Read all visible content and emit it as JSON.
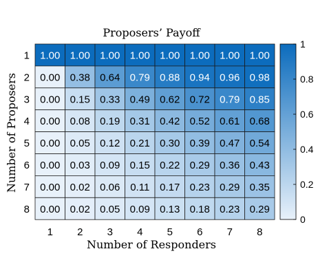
{
  "chart_data": {
    "type": "heatmap",
    "title": "Proposers’ Payoff",
    "xlabel": "Number of Responders",
    "ylabel": "Number of Proposers",
    "x_categories": [
      "1",
      "2",
      "3",
      "4",
      "5",
      "6",
      "7",
      "8"
    ],
    "y_categories": [
      "1",
      "2",
      "3",
      "4",
      "5",
      "6",
      "7",
      "8"
    ],
    "values": [
      [
        1.0,
        1.0,
        1.0,
        1.0,
        1.0,
        1.0,
        1.0,
        1.0
      ],
      [
        0.0,
        0.38,
        0.64,
        0.79,
        0.88,
        0.94,
        0.96,
        0.98
      ],
      [
        0.0,
        0.15,
        0.33,
        0.49,
        0.62,
        0.72,
        0.79,
        0.85
      ],
      [
        0.0,
        0.08,
        0.19,
        0.31,
        0.42,
        0.52,
        0.61,
        0.68
      ],
      [
        0.0,
        0.05,
        0.12,
        0.21,
        0.3,
        0.39,
        0.47,
        0.54
      ],
      [
        0.0,
        0.03,
        0.09,
        0.15,
        0.22,
        0.29,
        0.36,
        0.43
      ],
      [
        0.0,
        0.02,
        0.06,
        0.11,
        0.17,
        0.23,
        0.29,
        0.35
      ],
      [
        0.0,
        0.02,
        0.05,
        0.09,
        0.13,
        0.18,
        0.23,
        0.29
      ]
    ],
    "value_labels": [
      [
        "1.00",
        "1.00",
        "1.00",
        "1.00",
        "1.00",
        "1.00",
        "1.00",
        "1.00"
      ],
      [
        "0.00",
        "0.38",
        "0.64",
        "0.79",
        "0.88",
        "0.94",
        "0.96",
        "0.98"
      ],
      [
        "0.00",
        "0.15",
        "0.33",
        "0.49",
        "0.62",
        "0.72",
        "0.79",
        "0.85"
      ],
      [
        "0.00",
        "0.08",
        "0.19",
        "0.31",
        "0.42",
        "0.52",
        "0.61",
        "0.68"
      ],
      [
        "0.00",
        "0.05",
        "0.12",
        "0.21",
        "0.30",
        "0.39",
        "0.47",
        "0.54"
      ],
      [
        "0.00",
        "0.03",
        "0.09",
        "0.15",
        "0.22",
        "0.29",
        "0.36",
        "0.43"
      ],
      [
        "0.00",
        "0.02",
        "0.06",
        "0.11",
        "0.17",
        "0.23",
        "0.29",
        "0.35"
      ],
      [
        "0.00",
        "0.02",
        "0.05",
        "0.09",
        "0.13",
        "0.18",
        "0.23",
        "0.29"
      ]
    ],
    "colorbar": {
      "range": [
        0,
        1
      ],
      "ticks": [
        0,
        0.2,
        0.4,
        0.6,
        0.8,
        1
      ],
      "tick_labels": [
        "0",
        "0.2",
        "0.4",
        "0.6",
        "0.8",
        "1"
      ],
      "color_low": "#e8f1fa",
      "color_high": "#0c6cbd"
    },
    "text_color_dark": "#000000",
    "text_color_light": "#ffffff",
    "text_light_threshold": 0.75
  }
}
